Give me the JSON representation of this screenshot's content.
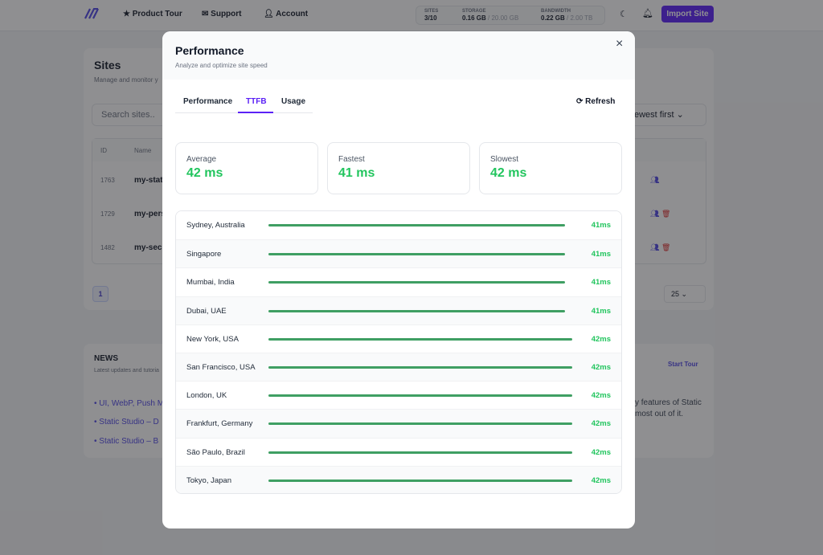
{
  "nav": {
    "items": [
      "Product Tour",
      "Support",
      "Account"
    ],
    "stats": [
      {
        "label": "SITES",
        "value": "3/10"
      },
      {
        "label": "STORAGE",
        "value": "0.16 GB",
        "limit": "/ 20.00 GB"
      },
      {
        "label": "BANDWIDTH",
        "value": "0.22 GB",
        "limit": "/ 2.00 TB"
      }
    ],
    "button": "Import Site"
  },
  "sites": {
    "title": "Sites",
    "subtitle": "Manage and monitor y",
    "search": "Search sites..",
    "sort": "ewest first",
    "columns": [
      "ID",
      "Name"
    ],
    "rows": [
      [
        "1763",
        "my-stati"
      ],
      [
        "1729",
        "my-pers"
      ],
      [
        "1482",
        "my-secu"
      ]
    ],
    "page": "1",
    "per_page": "25"
  },
  "news": {
    "title": "NEWS",
    "subtitle": "Latest updates and tutoria",
    "action": "Start Tour",
    "items": [
      "UI, WebP, Push M",
      "Static Studio – D",
      "Static Studio – B"
    ],
    "text": [
      "y features of Static",
      "most out of it."
    ]
  },
  "modal": {
    "title": "Performance",
    "subtitle": "Analyze and optimize site speed",
    "tabs": [
      "Performance",
      "TTFB",
      "Usage"
    ],
    "active_tab": 1,
    "refresh": "Refresh",
    "summary": [
      {
        "label": "Average",
        "value": "42 ms"
      },
      {
        "label": "Fastest",
        "value": "41 ms"
      },
      {
        "label": "Slowest",
        "value": "42 ms"
      }
    ],
    "locations": [
      {
        "name": "Sydney, Australia",
        "ttfb": 41,
        "label": "41ms"
      },
      {
        "name": "Singapore",
        "ttfb": 41,
        "label": "41ms"
      },
      {
        "name": "Mumbai, India",
        "ttfb": 41,
        "label": "41ms"
      },
      {
        "name": "Dubai, UAE",
        "ttfb": 41,
        "label": "41ms"
      },
      {
        "name": "New York, USA",
        "ttfb": 42,
        "label": "42ms"
      },
      {
        "name": "San Francisco, USA",
        "ttfb": 42,
        "label": "42ms"
      },
      {
        "name": "London, UK",
        "ttfb": 42,
        "label": "42ms"
      },
      {
        "name": "Frankfurt, Germany",
        "ttfb": 42,
        "label": "42ms"
      },
      {
        "name": "São Paulo, Brazil",
        "ttfb": 42,
        "label": "42ms"
      },
      {
        "name": "Tokyo, Japan",
        "ttfb": 42,
        "label": "42ms"
      }
    ],
    "bar_color": "#3f9f63",
    "value_color": "#22c55e"
  }
}
